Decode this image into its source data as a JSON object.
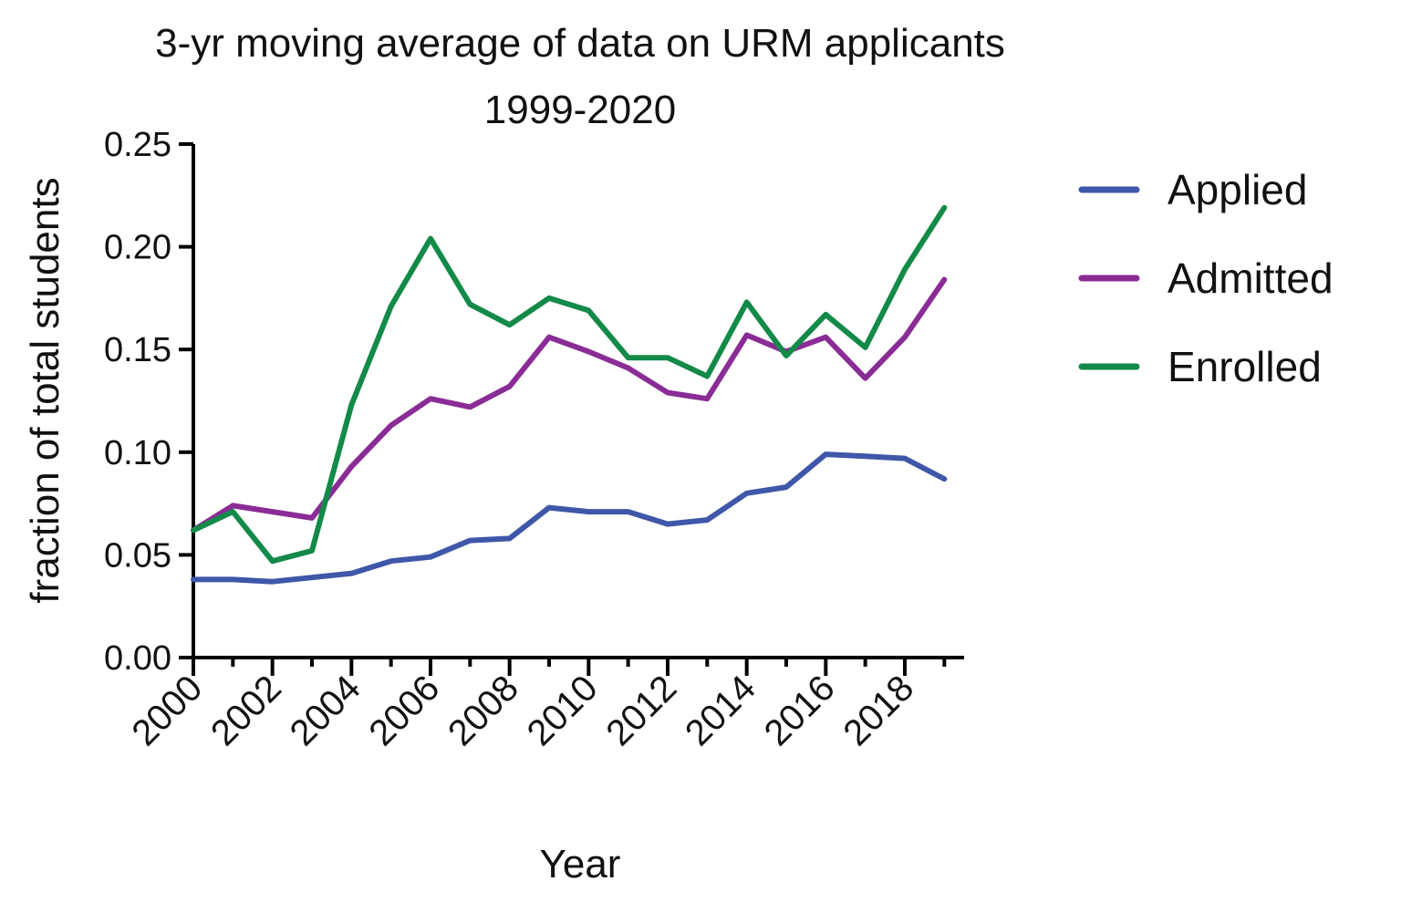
{
  "chart_data": {
    "type": "line",
    "title_line1": "3-yr moving average of data on URM applicants",
    "title_line2": "1999-2020",
    "xlabel": "Year",
    "ylabel": "fraction of total students",
    "xlim": [
      2000,
      2019.5
    ],
    "ylim": [
      0,
      0.25
    ],
    "yticks": [
      0.0,
      0.05,
      0.1,
      0.15,
      0.2,
      0.25
    ],
    "ytick_labels": [
      "0.00",
      "0.05",
      "0.10",
      "0.15",
      "0.20",
      "0.25"
    ],
    "xticks": [
      2000,
      2002,
      2004,
      2006,
      2008,
      2010,
      2012,
      2014,
      2016,
      2018
    ],
    "xtick_labels": [
      "2000",
      "2002",
      "2004",
      "2006",
      "2008",
      "2010",
      "2012",
      "2014",
      "2016",
      "2018"
    ],
    "x": [
      2000,
      2001,
      2002,
      2003,
      2004,
      2005,
      2006,
      2007,
      2008,
      2009,
      2010,
      2011,
      2012,
      2013,
      2014,
      2015,
      2016,
      2017,
      2018,
      2019
    ],
    "series": [
      {
        "name": "Applied",
        "color": "#3f57a8",
        "values": [
          0.038,
          0.038,
          0.037,
          0.039,
          0.041,
          0.047,
          0.049,
          0.057,
          0.058,
          0.073,
          0.071,
          0.071,
          0.065,
          0.067,
          0.08,
          0.083,
          0.099,
          0.098,
          0.097,
          0.087
        ]
      },
      {
        "name": "Admitted",
        "color": "#8a2c96",
        "values": [
          0.062,
          0.074,
          0.071,
          0.068,
          0.093,
          0.113,
          0.126,
          0.122,
          0.132,
          0.156,
          0.149,
          0.141,
          0.129,
          0.126,
          0.157,
          0.149,
          0.156,
          0.136,
          0.156,
          0.184
        ]
      },
      {
        "name": "Enrolled",
        "color": "#138a48",
        "values": [
          0.062,
          0.071,
          0.047,
          0.052,
          0.123,
          0.171,
          0.204,
          0.172,
          0.162,
          0.175,
          0.169,
          0.146,
          0.146,
          0.137,
          0.173,
          0.147,
          0.167,
          0.151,
          0.189,
          0.219
        ]
      }
    ],
    "legend_position": "right"
  }
}
